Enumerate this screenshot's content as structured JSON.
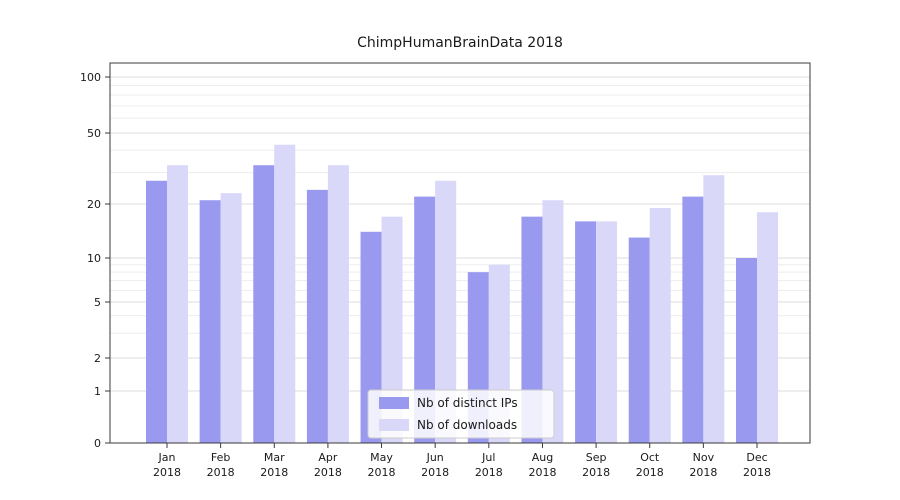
{
  "chart_data": {
    "type": "bar",
    "title": "ChimpHumanBrainData 2018",
    "categories": [
      "Jan",
      "Feb",
      "Mar",
      "Apr",
      "May",
      "Jun",
      "Jul",
      "Aug",
      "Sep",
      "Oct",
      "Nov",
      "Dec"
    ],
    "year": "2018",
    "series": [
      {
        "name": "Nb of distinct IPs",
        "color": "#9a99f0",
        "values": [
          27,
          21,
          33,
          24,
          14,
          22,
          8,
          17,
          16,
          13,
          22,
          10
        ]
      },
      {
        "name": "Nb of downloads",
        "color": "#d9d8f9",
        "values": [
          33,
          23,
          43,
          33,
          17,
          27,
          9,
          21,
          16,
          19,
          29,
          18
        ]
      }
    ],
    "yticks": [
      0,
      1,
      2,
      5,
      10,
      20,
      50,
      100
    ],
    "minor_yticks": [
      3,
      4,
      6,
      7,
      8,
      9,
      30,
      40,
      60,
      70,
      80,
      90
    ],
    "ylim": [
      0,
      120
    ],
    "yscale": "symlog",
    "grid": true,
    "legend_position": "lower center",
    "xlabel": "",
    "ylabel": ""
  },
  "colors": {
    "major_grid": "#dcdcdc",
    "minor_grid": "#ededed",
    "spine": "#3a3a3a",
    "legend_border": "#cccccc"
  }
}
